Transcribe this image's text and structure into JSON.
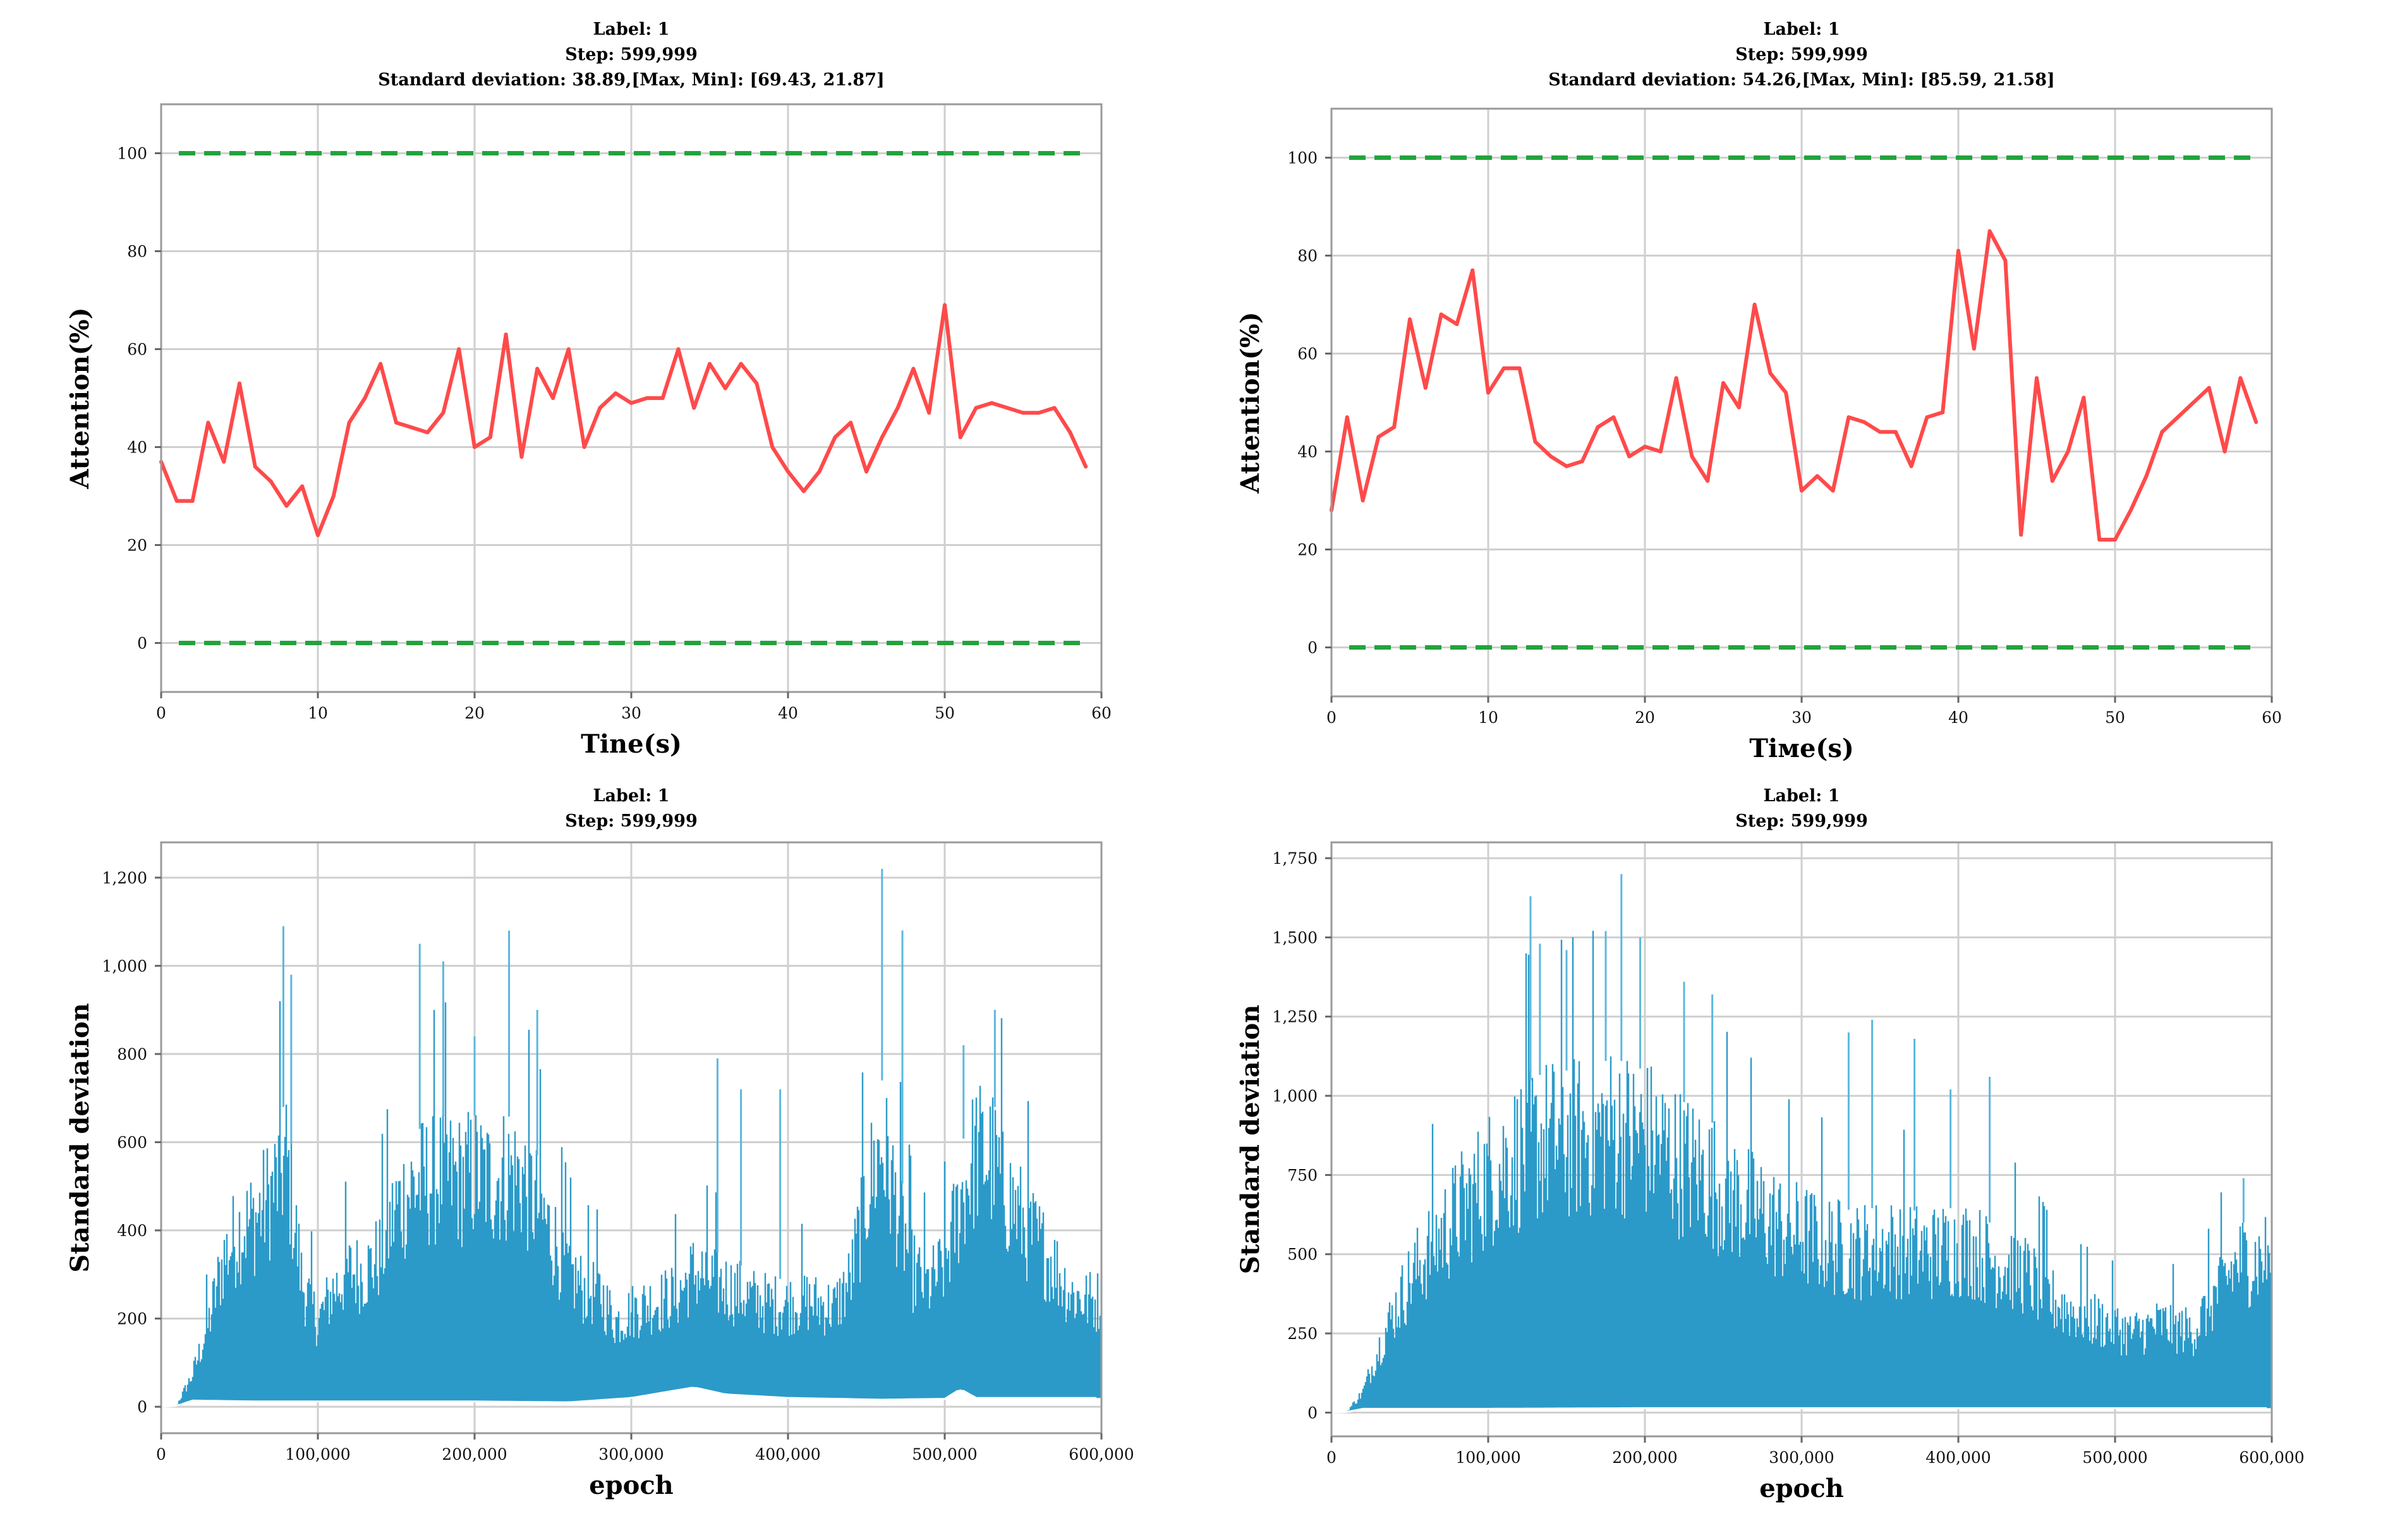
{
  "chart_data": [
    {
      "id": "p1",
      "type": "line",
      "title_lines": [
        "Label: 1",
        "Step:  599,999",
        "Standard deviation: 38.89,[Max, Min]: [69.43, 21.87]"
      ],
      "xlabel": "Tine(s)",
      "ylabel": "Attention(%)",
      "xlim": [
        0,
        60
      ],
      "ylim": [
        -10,
        110
      ],
      "xticks": [
        0,
        10,
        20,
        30,
        40,
        50,
        60
      ],
      "yticks": [
        0,
        20,
        40,
        60,
        80,
        100
      ],
      "x_tick_labels": [
        "0",
        "10",
        "20",
        "30",
        "40",
        "50",
        "60"
      ],
      "y_tick_labels": [
        "0",
        "20",
        "40",
        "60",
        "80",
        "100"
      ],
      "grid": true,
      "reference_lines": [
        100,
        0
      ],
      "reference_color": "#22a33c",
      "series_color": "#ff4a4a",
      "x": [
        0,
        1,
        2,
        3,
        4,
        5,
        6,
        7,
        8,
        9,
        10,
        11,
        12,
        13,
        14,
        15,
        16,
        17,
        18,
        19,
        20,
        21,
        22,
        23,
        24,
        25,
        26,
        27,
        28,
        29,
        30,
        31,
        32,
        33,
        34,
        35,
        36,
        37,
        38,
        39,
        40,
        41,
        42,
        43,
        44,
        45,
        46,
        47,
        48,
        49,
        50,
        51,
        52,
        53,
        54,
        55,
        56,
        57,
        58,
        59
      ],
      "values": [
        37,
        29,
        29,
        45,
        37,
        53,
        36,
        33,
        28,
        32,
        22,
        30,
        45,
        50,
        57,
        45,
        44,
        43,
        47,
        60,
        40,
        42,
        63,
        38,
        56,
        50,
        60,
        40,
        48,
        51,
        49,
        50,
        50,
        60,
        48,
        57,
        52,
        57,
        53,
        40,
        35,
        31,
        35,
        42,
        45,
        35,
        42,
        48,
        56,
        47,
        69,
        42,
        48,
        49,
        48,
        47,
        47,
        48,
        43,
        36
      ]
    },
    {
      "id": "p2",
      "type": "line",
      "title_lines": [
        "Label: 1",
        "Step:  599,999",
        "Standard deviation: 54.26,[Max, Min]: [85.59, 21.58]"
      ],
      "xlabel": "Tiме(s)",
      "ylabel": "Attention(%)",
      "xlim": [
        0,
        60
      ],
      "ylim": [
        -10,
        110
      ],
      "xticks": [
        0,
        10,
        20,
        30,
        40,
        50,
        60
      ],
      "yticks": [
        0,
        20,
        40,
        60,
        80,
        100
      ],
      "x_tick_labels": [
        "0",
        "10",
        "20",
        "30",
        "40",
        "50",
        "60"
      ],
      "y_tick_labels": [
        "0",
        "20",
        "40",
        "60",
        "80",
        "100"
      ],
      "grid": true,
      "reference_lines": [
        100,
        0
      ],
      "reference_color": "#22a33c",
      "series_color": "#ff4a4a",
      "x": [
        0,
        1,
        2,
        3,
        4,
        5,
        6,
        7,
        8,
        9,
        10,
        11,
        12,
        13,
        14,
        15,
        16,
        17,
        18,
        19,
        20,
        21,
        22,
        23,
        24,
        25,
        26,
        27,
        28,
        29,
        30,
        31,
        32,
        33,
        34,
        35,
        36,
        37,
        38,
        39,
        40,
        41,
        42,
        43,
        44,
        45,
        46,
        47,
        48,
        49,
        50,
        51,
        52,
        53,
        54,
        55,
        56,
        57,
        58,
        59
      ],
      "values": [
        28,
        47,
        30,
        43,
        45,
        67,
        53,
        68,
        66,
        77,
        52,
        57,
        57,
        42,
        39,
        37,
        38,
        45,
        47,
        39,
        41,
        40,
        55,
        39,
        34,
        54,
        49,
        70,
        56,
        52,
        32,
        35,
        32,
        47,
        46,
        44,
        44,
        37,
        47,
        48,
        81,
        61,
        85,
        79,
        23,
        55,
        34,
        40,
        51,
        22,
        22,
        28,
        35,
        44,
        47,
        50,
        53,
        40,
        55,
        46
      ]
    },
    {
      "id": "p3",
      "type": "area",
      "title_lines": [
        "Label: 1",
        "Step:  599,999"
      ],
      "xlabel": "epoch",
      "ylabel": "Standard deviation",
      "xlim": [
        0,
        600000
      ],
      "ylim": [
        -60,
        1280
      ],
      "xticks": [
        0,
        100000,
        200000,
        300000,
        400000,
        500000,
        600000
      ],
      "yticks": [
        0,
        200,
        400,
        600,
        800,
        1000,
        1200
      ],
      "x_tick_labels": [
        "0",
        "100,000",
        "200,000",
        "300,000",
        "400,000",
        "500,000",
        "600,000"
      ],
      "y_tick_labels": [
        "0",
        "200",
        "400",
        "600",
        "800",
        "1,000",
        "1,200"
      ],
      "grid": true,
      "series_color": "#2b9ac9",
      "spike_color": "#5bb8de",
      "envelope": [
        [
          0,
          0
        ],
        [
          10000,
          5
        ],
        [
          20000,
          90
        ],
        [
          30000,
          230
        ],
        [
          40000,
          420
        ],
        [
          50000,
          500
        ],
        [
          60000,
          530
        ],
        [
          70000,
          600
        ],
        [
          80000,
          700
        ],
        [
          90000,
          350
        ],
        [
          100000,
          240
        ],
        [
          110000,
          330
        ],
        [
          120000,
          380
        ],
        [
          130000,
          380
        ],
        [
          140000,
          430
        ],
        [
          150000,
          560
        ],
        [
          160000,
          620
        ],
        [
          170000,
          640
        ],
        [
          180000,
          660
        ],
        [
          190000,
          640
        ],
        [
          200000,
          660
        ],
        [
          210000,
          640
        ],
        [
          220000,
          660
        ],
        [
          230000,
          650
        ],
        [
          240000,
          570
        ],
        [
          250000,
          480
        ],
        [
          260000,
          380
        ],
        [
          270000,
          330
        ],
        [
          280000,
          320
        ],
        [
          290000,
          240
        ],
        [
          300000,
          270
        ],
        [
          310000,
          290
        ],
        [
          320000,
          300
        ],
        [
          330000,
          320
        ],
        [
          340000,
          380
        ],
        [
          350000,
          360
        ],
        [
          360000,
          340
        ],
        [
          370000,
          320
        ],
        [
          380000,
          300
        ],
        [
          390000,
          290
        ],
        [
          400000,
          290
        ],
        [
          410000,
          300
        ],
        [
          420000,
          290
        ],
        [
          430000,
          280
        ],
        [
          440000,
          360
        ],
        [
          450000,
          600
        ],
        [
          460000,
          740
        ],
        [
          470000,
          560
        ],
        [
          480000,
          380
        ],
        [
          490000,
          340
        ],
        [
          500000,
          400
        ],
        [
          510000,
          580
        ],
        [
          520000,
          720
        ],
        [
          530000,
          700
        ],
        [
          540000,
          600
        ],
        [
          550000,
          520
        ],
        [
          560000,
          460
        ],
        [
          570000,
          400
        ],
        [
          580000,
          320
        ],
        [
          590000,
          300
        ],
        [
          600000,
          300
        ]
      ],
      "floor": [
        [
          0,
          0
        ],
        [
          10000,
          2
        ],
        [
          20000,
          14
        ],
        [
          60000,
          12
        ],
        [
          100000,
          12
        ],
        [
          200000,
          12
        ],
        [
          260000,
          10
        ],
        [
          300000,
          20
        ],
        [
          340000,
          44
        ],
        [
          360000,
          28
        ],
        [
          400000,
          20
        ],
        [
          460000,
          16
        ],
        [
          500000,
          18
        ],
        [
          510000,
          40
        ],
        [
          520000,
          20
        ],
        [
          600000,
          20
        ]
      ],
      "spikes": [
        [
          78000,
          1090
        ],
        [
          83000,
          980
        ],
        [
          165000,
          1050
        ],
        [
          180000,
          1010
        ],
        [
          200000,
          840
        ],
        [
          222000,
          1080
        ],
        [
          240000,
          900
        ],
        [
          355000,
          790
        ],
        [
          370000,
          720
        ],
        [
          395000,
          720
        ],
        [
          460000,
          1220
        ],
        [
          473000,
          1080
        ],
        [
          532000,
          900
        ],
        [
          512000,
          820
        ]
      ]
    },
    {
      "id": "p4",
      "type": "area",
      "title_lines": [
        "Label: 1",
        "Step:  599,999"
      ],
      "xlabel": "epoch",
      "ylabel": "Standard deviation",
      "xlim": [
        0,
        600000
      ],
      "ylim": [
        -75,
        1800
      ],
      "xticks": [
        0,
        100000,
        200000,
        300000,
        400000,
        500000,
        600000
      ],
      "yticks": [
        0,
        250,
        500,
        750,
        1000,
        1250,
        1500,
        1750
      ],
      "x_tick_labels": [
        "0",
        "100,000",
        "200,000",
        "300,000",
        "400,000",
        "500,000",
        "600,000"
      ],
      "y_tick_labels": [
        "0",
        "250",
        "500",
        "750",
        "1,000",
        "1,250",
        "1,500",
        "1,750"
      ],
      "grid": true,
      "series_color": "#2b9ac9",
      "spike_color": "#5bb8de",
      "envelope": [
        [
          0,
          0
        ],
        [
          10000,
          5
        ],
        [
          20000,
          80
        ],
        [
          30000,
          250
        ],
        [
          40000,
          400
        ],
        [
          50000,
          520
        ],
        [
          60000,
          620
        ],
        [
          70000,
          700
        ],
        [
          80000,
          780
        ],
        [
          90000,
          850
        ],
        [
          100000,
          920
        ],
        [
          110000,
          980
        ],
        [
          120000,
          1020
        ],
        [
          130000,
          1060
        ],
        [
          140000,
          1080
        ],
        [
          150000,
          1080
        ],
        [
          160000,
          1090
        ],
        [
          170000,
          1100
        ],
        [
          180000,
          1120
        ],
        [
          190000,
          1100
        ],
        [
          200000,
          1080
        ],
        [
          210000,
          1050
        ],
        [
          220000,
          1000
        ],
        [
          230000,
          960
        ],
        [
          240000,
          930
        ],
        [
          250000,
          880
        ],
        [
          260000,
          840
        ],
        [
          270000,
          800
        ],
        [
          280000,
          760
        ],
        [
          290000,
          720
        ],
        [
          300000,
          700
        ],
        [
          310000,
          680
        ],
        [
          320000,
          660
        ],
        [
          330000,
          640
        ],
        [
          340000,
          640
        ],
        [
          350000,
          650
        ],
        [
          360000,
          650
        ],
        [
          370000,
          640
        ],
        [
          380000,
          630
        ],
        [
          390000,
          640
        ],
        [
          400000,
          650
        ],
        [
          410000,
          640
        ],
        [
          420000,
          600
        ],
        [
          430000,
          580
        ],
        [
          440000,
          560
        ],
        [
          450000,
          500
        ],
        [
          460000,
          440
        ],
        [
          470000,
          410
        ],
        [
          480000,
          380
        ],
        [
          490000,
          360
        ],
        [
          500000,
          340
        ],
        [
          510000,
          310
        ],
        [
          520000,
          330
        ],
        [
          530000,
          350
        ],
        [
          540000,
          330
        ],
        [
          550000,
          320
        ],
        [
          560000,
          420
        ],
        [
          570000,
          520
        ],
        [
          580000,
          600
        ],
        [
          590000,
          600
        ],
        [
          600000,
          620
        ]
      ],
      "floor": [
        [
          0,
          0
        ],
        [
          10000,
          2
        ],
        [
          20000,
          12
        ],
        [
          100000,
          12
        ],
        [
          200000,
          14
        ],
        [
          300000,
          14
        ],
        [
          400000,
          14
        ],
        [
          500000,
          14
        ],
        [
          600000,
          14
        ]
      ],
      "spikes": [
        [
          127000,
          1630
        ],
        [
          133000,
          1480
        ],
        [
          150000,
          1460
        ],
        [
          185000,
          1700
        ],
        [
          175000,
          1520
        ],
        [
          197000,
          1500
        ],
        [
          225000,
          1360
        ],
        [
          243000,
          1320
        ],
        [
          330000,
          1200
        ],
        [
          345000,
          1240
        ],
        [
          372000,
          1180
        ],
        [
          395000,
          1020
        ],
        [
          420000,
          1060
        ],
        [
          582000,
          740
        ]
      ]
    }
  ]
}
